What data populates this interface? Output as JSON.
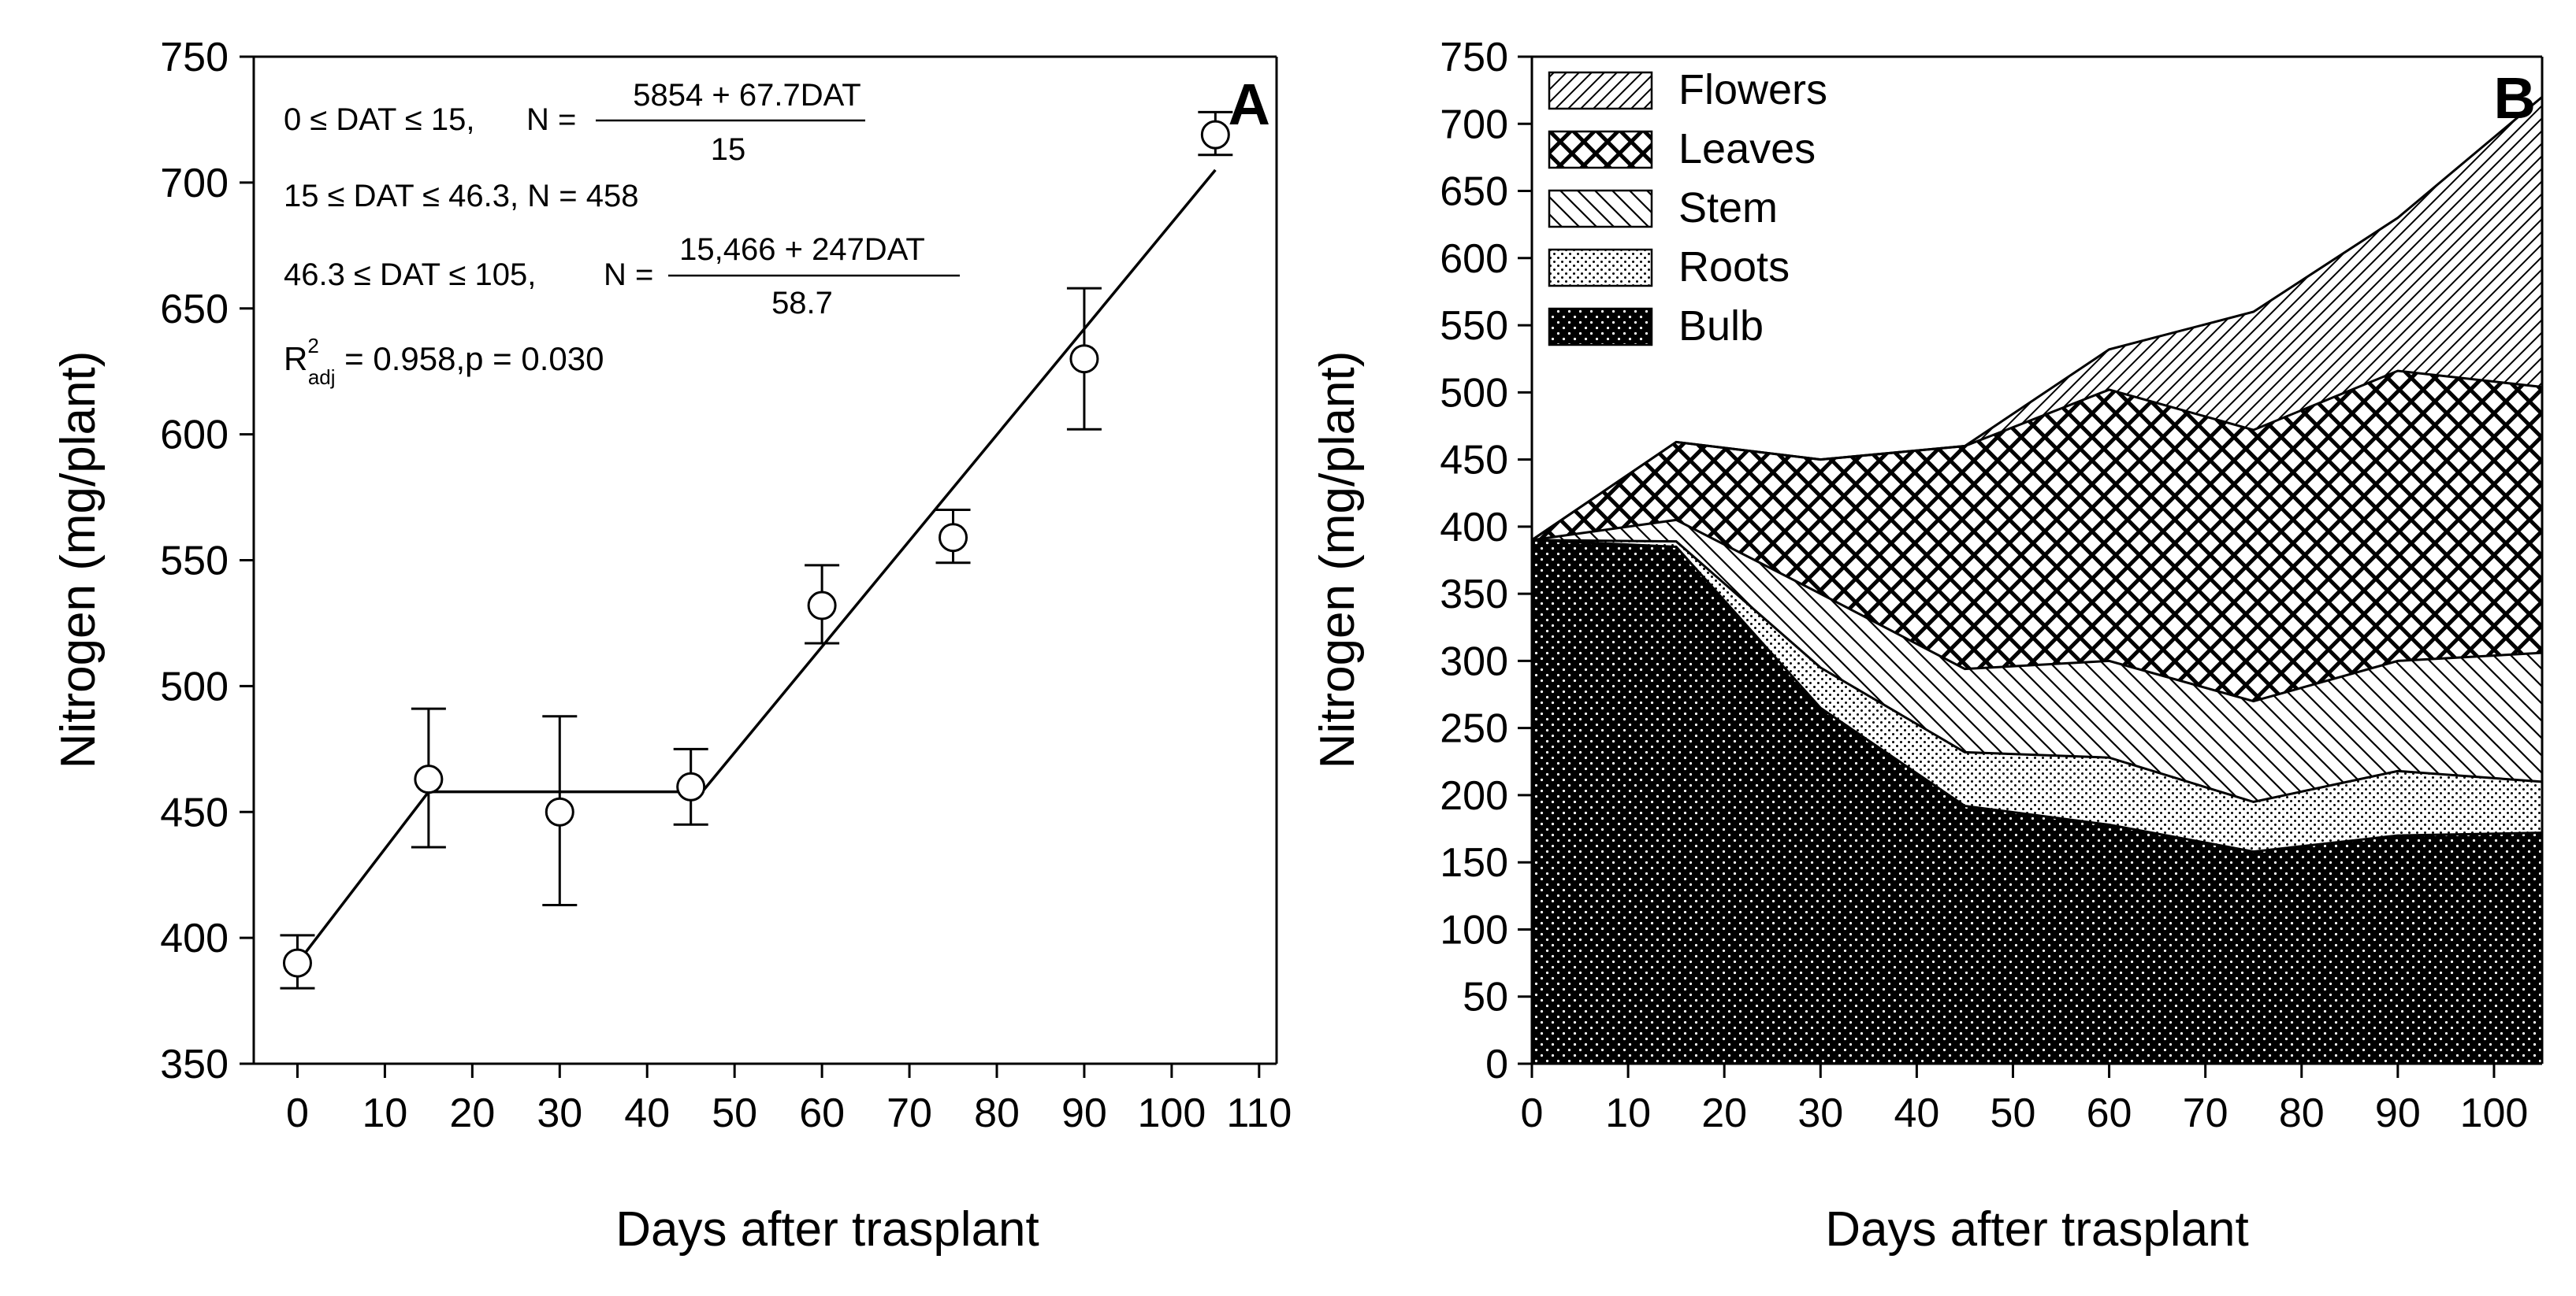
{
  "chart_data": [
    {
      "panel": "A",
      "type": "scatter",
      "panel_label": "A",
      "xlabel": "Days after trasplant",
      "ylabel": "Nitrogen (mg/plant)",
      "xlim": [
        -5,
        112
      ],
      "ylim": [
        350,
        750
      ],
      "xticks": [
        0,
        10,
        20,
        30,
        40,
        50,
        60,
        70,
        80,
        90,
        100,
        110
      ],
      "yticks": [
        350,
        400,
        450,
        500,
        550,
        600,
        650,
        700,
        750
      ],
      "points": [
        {
          "x": 0,
          "y": 390,
          "err_lo": 380,
          "err_hi": 401
        },
        {
          "x": 15,
          "y": 463,
          "err_lo": 436,
          "err_hi": 491
        },
        {
          "x": 30,
          "y": 450,
          "err_lo": 413,
          "err_hi": 488
        },
        {
          "x": 45,
          "y": 460,
          "err_lo": 445,
          "err_hi": 475
        },
        {
          "x": 60,
          "y": 532,
          "err_lo": 517,
          "err_hi": 548
        },
        {
          "x": 75,
          "y": 559,
          "err_lo": 549,
          "err_hi": 570
        },
        {
          "x": 90,
          "y": 630,
          "err_lo": 602,
          "err_hi": 658
        },
        {
          "x": 105,
          "y": 719,
          "err_lo": 711,
          "err_hi": 728
        }
      ],
      "fit_line": [
        [
          0,
          390
        ],
        [
          15,
          458
        ],
        [
          46.3,
          458
        ],
        [
          105,
          705
        ]
      ],
      "equations": {
        "eq1_cond": "0 ≤ DAT ≤ 15,",
        "eq1_lhs": "N =",
        "eq1_num": "5854 + 67.7DAT",
        "eq1_den": "15",
        "eq2": "15 ≤ DAT ≤ 46.3,   N = 458",
        "eq3_cond": "46.3 ≤ DAT ≤ 105,",
        "eq3_lhs": "N =",
        "eq3_num": "15,466 + 247DAT",
        "eq3_den": "58.7",
        "r_base": "R",
        "r_sup": "2",
        "r_sub": "adj",
        "r_rest": " = 0.958,p = 0.030"
      }
    },
    {
      "panel": "B",
      "type": "area",
      "stacked": true,
      "panel_label": "B",
      "xlabel": "Days after trasplant",
      "ylabel": "Nitrogen (mg/plant)",
      "xlim": [
        0,
        105
      ],
      "ylim": [
        0,
        750
      ],
      "xticks": [
        0,
        10,
        20,
        30,
        40,
        50,
        60,
        70,
        80,
        90,
        100
      ],
      "yticks": [
        0,
        50,
        100,
        150,
        200,
        250,
        300,
        350,
        400,
        450,
        500,
        550,
        600,
        650,
        700,
        750
      ],
      "x": [
        0,
        15,
        30,
        45,
        60,
        75,
        90,
        105
      ],
      "series": [
        {
          "name": "Bulb",
          "pattern": "bulb",
          "values": [
            390,
            385,
            265,
            192,
            178,
            158,
            170,
            172
          ]
        },
        {
          "name": "Roots",
          "pattern": "roots",
          "values": [
            0,
            4,
            30,
            40,
            50,
            37,
            48,
            38
          ]
        },
        {
          "name": "Stem",
          "pattern": "stem",
          "values": [
            0,
            16,
            55,
            62,
            72,
            75,
            82,
            96
          ]
        },
        {
          "name": "Leaves",
          "pattern": "leaves",
          "values": [
            0,
            58,
            100,
            166,
            202,
            202,
            216,
            198
          ]
        },
        {
          "name": "Flowers",
          "pattern": "flowers",
          "values": [
            0,
            0,
            0,
            0,
            30,
            88,
            114,
            216
          ]
        }
      ],
      "legend": [
        "Flowers",
        "Leaves",
        "Stem",
        "Roots",
        "Bulb"
      ],
      "legend_position": "top-left"
    }
  ]
}
